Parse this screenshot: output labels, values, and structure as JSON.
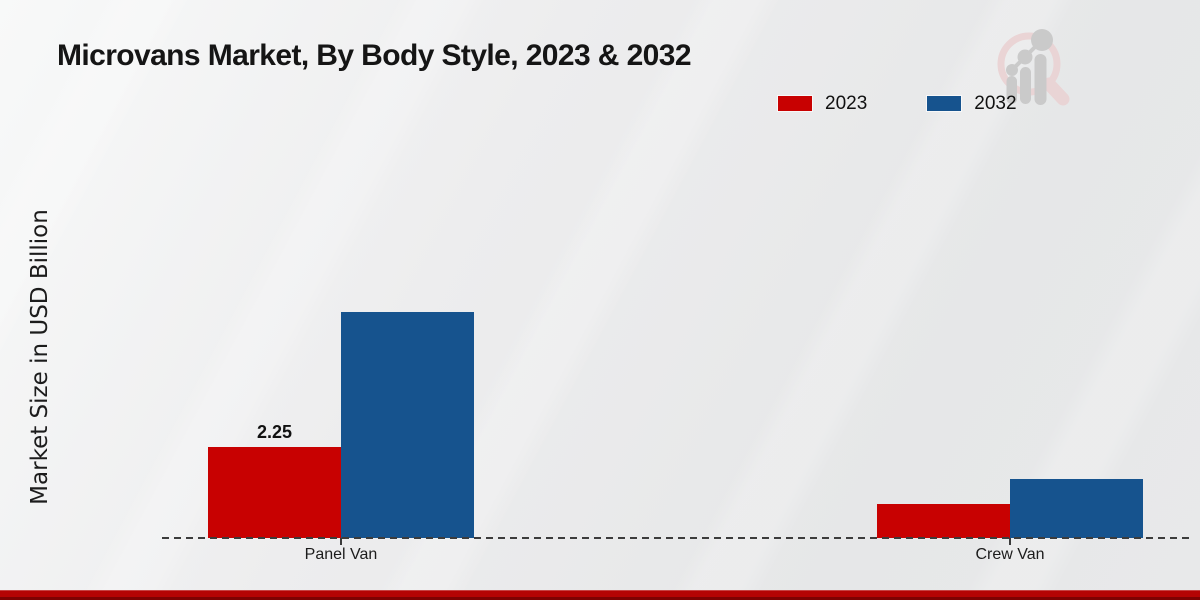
{
  "title": "Microvans Market, By Body Style, 2023 & 2032",
  "chart_data": {
    "type": "bar",
    "title": "Microvans Market, By Body Style, 2023 & 2032",
    "xlabel": "",
    "ylabel": "Market Size in USD Billion",
    "categories": [
      "Panel Van",
      "Crew Van"
    ],
    "series": [
      {
        "name": "2023",
        "color": "#c80101",
        "values": [
          2.25,
          0.85
        ]
      },
      {
        "name": "2032",
        "color": "#16538e",
        "values": [
          5.6,
          1.45
        ]
      }
    ],
    "bar_labels": [
      {
        "category": "Panel Van",
        "series": "2023",
        "text": "2.25"
      }
    ],
    "ylim": [
      0,
      6
    ],
    "grid": false,
    "legend_position": "top-right",
    "baseline_style": "dashed"
  },
  "logo": {
    "name": "market-research-future-watermark"
  },
  "colors": {
    "footer": "#b50404",
    "axis": "#3c3c3c",
    "background": "#e9eaeb",
    "logo_pink": "#ead2d3",
    "logo_gray": "#c7c7c7"
  }
}
